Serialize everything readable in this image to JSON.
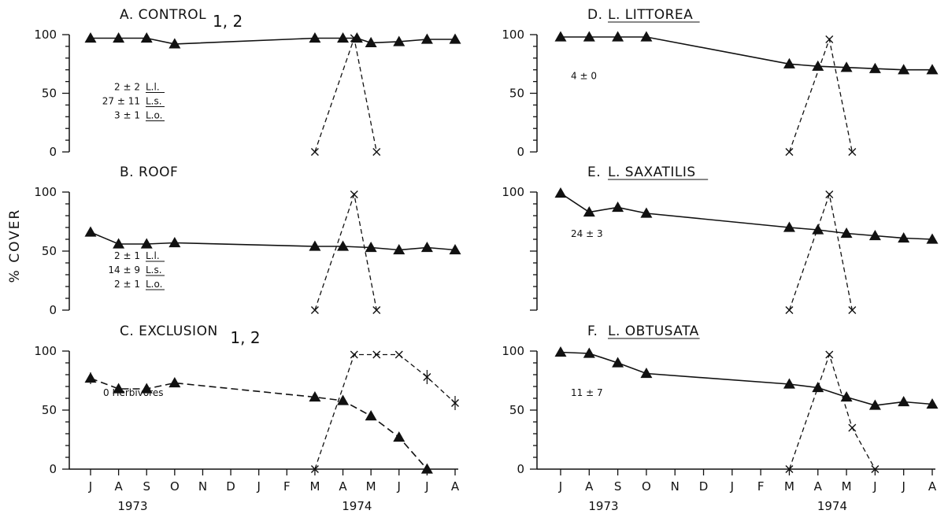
{
  "y_axis_label": "% COVER",
  "months": [
    "J",
    "A",
    "S",
    "O",
    "N",
    "D",
    "J",
    "F",
    "M",
    "A",
    "M",
    "J",
    "J",
    "A"
  ],
  "years": [
    "1973",
    "1974"
  ],
  "chart_data": [
    {
      "type": "line",
      "panel": "A",
      "title": "A. CONTROL",
      "title_superscript": "1, 2",
      "title_underlined": "",
      "ylim": [
        0,
        100
      ],
      "yticks": [
        0,
        50,
        100
      ],
      "annotation": [
        {
          "value": "2 ± 2",
          "species": "L.l."
        },
        {
          "value": "27 ± 11",
          "species": "L.s."
        },
        {
          "value": "3 ± 1",
          "species": "L.o."
        }
      ],
      "series": [
        {
          "marker": "triangle",
          "x": [
            0,
            1,
            2,
            3,
            8,
            9,
            9.5,
            10,
            11,
            12,
            13
          ],
          "y": [
            97,
            97,
            97,
            92,
            97,
            97,
            97,
            93,
            94,
            96,
            96
          ],
          "error": [
            0,
            0,
            0,
            3,
            0,
            0,
            0,
            0,
            0,
            0,
            0
          ]
        },
        {
          "marker": "x",
          "x": [
            8,
            9.4,
            10.2
          ],
          "y": [
            0,
            97,
            0
          ]
        }
      ]
    },
    {
      "type": "line",
      "panel": "B",
      "title": "B. ROOF",
      "title_superscript": "",
      "title_underlined": "",
      "ylim": [
        0,
        100
      ],
      "yticks": [
        0,
        50,
        100
      ],
      "annotation": [
        {
          "value": "2 ± 1",
          "species": "L.l."
        },
        {
          "value": "14 ± 9",
          "species": "L.s."
        },
        {
          "value": "2 ± 1",
          "species": "L.o."
        }
      ],
      "series": [
        {
          "marker": "triangle",
          "x": [
            0,
            1,
            2,
            3,
            8,
            9,
            10,
            11,
            12,
            13
          ],
          "y": [
            66,
            56,
            56,
            57,
            54,
            54,
            53,
            51,
            53,
            51
          ]
        },
        {
          "marker": "x",
          "x": [
            8,
            9.4,
            10.2
          ],
          "y": [
            0,
            98,
            0
          ]
        }
      ]
    },
    {
      "type": "line",
      "panel": "C",
      "title": "C. EXCLUSION",
      "title_superscript": "1, 2",
      "title_underlined": "",
      "ylim": [
        0,
        100
      ],
      "yticks": [
        0,
        50,
        100
      ],
      "annotation_text": "0 Herbivores",
      "series": [
        {
          "marker": "triangle",
          "x": [
            0,
            1,
            2,
            3,
            8,
            9,
            10,
            11,
            12
          ],
          "y": [
            77,
            68,
            68,
            73,
            61,
            58,
            45,
            27,
            0
          ],
          "error": [
            5,
            3,
            3,
            3,
            0,
            0,
            0,
            0,
            0
          ]
        },
        {
          "marker": "x",
          "x": [
            8,
            9.4,
            10.2,
            11,
            12,
            13
          ],
          "y": [
            0,
            97,
            97,
            97,
            78,
            56
          ],
          "error": [
            0,
            0,
            0,
            0,
            6,
            6
          ]
        }
      ]
    },
    {
      "type": "line",
      "panel": "D",
      "title": "D.",
      "title_superscript": "",
      "title_underlined": "L. LITTOREA",
      "ylim": [
        0,
        100
      ],
      "yticks": [
        0,
        50,
        100
      ],
      "annotation_text": "4 ± 0",
      "series": [
        {
          "marker": "triangle",
          "x": [
            0,
            1,
            2,
            3,
            8,
            9,
            10,
            11,
            12,
            13
          ],
          "y": [
            98,
            98,
            98,
            98,
            75,
            73,
            72,
            71,
            70,
            70
          ]
        },
        {
          "marker": "x",
          "x": [
            8,
            9.4,
            10.2
          ],
          "y": [
            0,
            96,
            0
          ]
        }
      ]
    },
    {
      "type": "line",
      "panel": "E",
      "title": "E.",
      "title_superscript": "",
      "title_underlined": "L. SAXATILIS",
      "ylim": [
        0,
        100
      ],
      "yticks": [
        0,
        50,
        100
      ],
      "annotation_text": "24 ± 3",
      "series": [
        {
          "marker": "triangle",
          "x": [
            0,
            1,
            2,
            3,
            8,
            9,
            10,
            11,
            12,
            13
          ],
          "y": [
            99,
            83,
            87,
            82,
            70,
            68,
            65,
            63,
            61,
            60
          ]
        },
        {
          "marker": "x",
          "x": [
            8,
            9.4,
            10.2
          ],
          "y": [
            0,
            98,
            0
          ]
        }
      ]
    },
    {
      "type": "line",
      "panel": "F",
      "title": "F.",
      "title_superscript": "",
      "title_underlined": "L. OBTUSATA",
      "ylim": [
        0,
        100
      ],
      "yticks": [
        0,
        50,
        100
      ],
      "annotation_text": "11 ± 7",
      "series": [
        {
          "marker": "triangle",
          "x": [
            0,
            1,
            2,
            3,
            8,
            9,
            10,
            11,
            12,
            13
          ],
          "y": [
            99,
            98,
            90,
            81,
            72,
            69,
            61,
            54,
            57,
            55
          ]
        },
        {
          "marker": "x",
          "x": [
            8,
            9.4,
            10.2,
            11
          ],
          "y": [
            0,
            97,
            35,
            0
          ]
        }
      ]
    }
  ]
}
